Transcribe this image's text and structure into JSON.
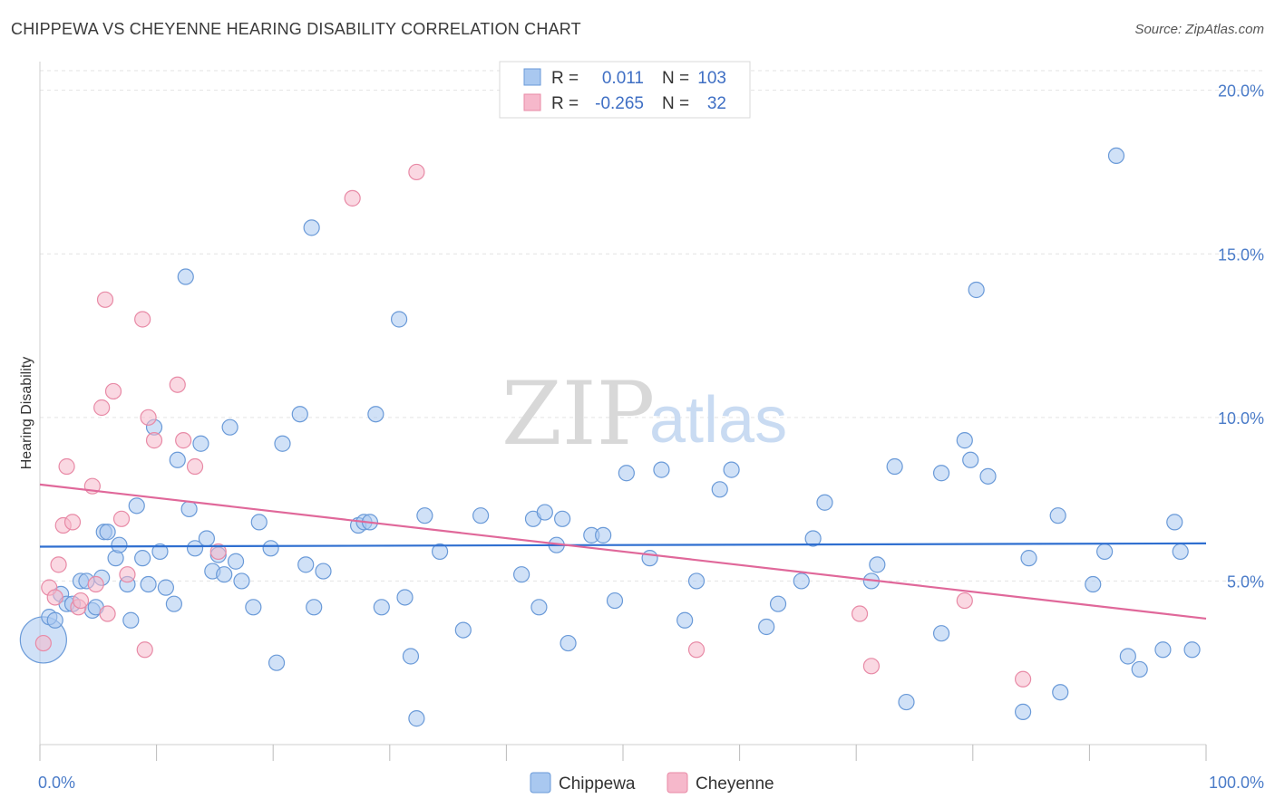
{
  "title": "CHIPPEWA VS CHEYENNE HEARING DISABILITY CORRELATION CHART",
  "source": "Source: ZipAtlas.com",
  "watermark": {
    "zip": "ZIP",
    "atlas": "atlas"
  },
  "colors": {
    "chippewa_fill": "#a9c8f0",
    "chippewa_stroke": "#6a9ad8",
    "chippewa_line": "#2f6fd0",
    "cheyenne_fill": "#f6b8cb",
    "cheyenne_stroke": "#e88aa6",
    "cheyenne_line": "#e0689a",
    "grid": "#e3e3e3",
    "tick_label": "#4a7bc8"
  },
  "legend": {
    "rows": [
      {
        "r_label": "R =",
        "r_value": "0.011",
        "n_label": "N =",
        "n_value": "103"
      },
      {
        "r_label": "R =",
        "r_value": "-0.265",
        "n_label": "N =",
        "n_value": "32"
      }
    ]
  },
  "chart_data": {
    "type": "scatter",
    "title": "CHIPPEWA VS CHEYENNE HEARING DISABILITY CORRELATION CHART",
    "xlabel": "",
    "ylabel": "Hearing Disability",
    "xlim": [
      0,
      100
    ],
    "ylim": [
      0,
      20.6
    ],
    "x_tick_labels": [
      "0.0%",
      "100.0%"
    ],
    "y_ticks": [
      5,
      10,
      15,
      20
    ],
    "y_tick_labels": [
      "5.0%",
      "10.0%",
      "15.0%",
      "20.0%"
    ],
    "grid": true,
    "legend_placement": "top-center",
    "series": [
      {
        "name": "Chippewa",
        "trend": {
          "y_at_0": 6.05,
          "y_at_100": 6.15
        },
        "points": [
          [
            0.3,
            3.2,
            30
          ],
          [
            0.8,
            3.9,
            10
          ],
          [
            1.3,
            3.8,
            10
          ],
          [
            1.8,
            4.6,
            10
          ],
          [
            2.3,
            4.3,
            10
          ],
          [
            2.8,
            4.3,
            10
          ],
          [
            3.5,
            5.0,
            10
          ],
          [
            4.0,
            5.0,
            10
          ],
          [
            4.5,
            4.1,
            10
          ],
          [
            4.8,
            4.2,
            10
          ],
          [
            5.3,
            5.1,
            10
          ],
          [
            5.5,
            6.5,
            10
          ],
          [
            5.8,
            6.5,
            10
          ],
          [
            6.5,
            5.7,
            10
          ],
          [
            6.8,
            6.1,
            10
          ],
          [
            7.5,
            4.9,
            10
          ],
          [
            7.8,
            3.8,
            10
          ],
          [
            8.3,
            7.3,
            10
          ],
          [
            8.8,
            5.7,
            10
          ],
          [
            9.3,
            4.9,
            10
          ],
          [
            9.8,
            9.7,
            10
          ],
          [
            10.3,
            5.9,
            10
          ],
          [
            10.8,
            4.8,
            10
          ],
          [
            11.5,
            4.3,
            10
          ],
          [
            11.8,
            8.7,
            10
          ],
          [
            12.5,
            14.3,
            10
          ],
          [
            12.8,
            7.2,
            10
          ],
          [
            13.3,
            6.0,
            10
          ],
          [
            13.8,
            9.2,
            10
          ],
          [
            14.3,
            6.3,
            10
          ],
          [
            14.8,
            5.3,
            10
          ],
          [
            15.3,
            5.8,
            10
          ],
          [
            15.8,
            5.2,
            10
          ],
          [
            16.3,
            9.7,
            10
          ],
          [
            16.8,
            5.6,
            10
          ],
          [
            17.3,
            5.0,
            10
          ],
          [
            18.3,
            4.2,
            10
          ],
          [
            18.8,
            6.8,
            10
          ],
          [
            19.8,
            6.0,
            10
          ],
          [
            20.3,
            2.5,
            10
          ],
          [
            20.8,
            9.2,
            10
          ],
          [
            22.3,
            10.1,
            10
          ],
          [
            22.8,
            5.5,
            10
          ],
          [
            23.3,
            15.8,
            10
          ],
          [
            23.5,
            4.2,
            10
          ],
          [
            24.3,
            5.3,
            10
          ],
          [
            27.3,
            6.7,
            10
          ],
          [
            27.8,
            6.8,
            10
          ],
          [
            28.3,
            6.8,
            10
          ],
          [
            28.8,
            10.1,
            10
          ],
          [
            29.3,
            4.2,
            10
          ],
          [
            30.8,
            13.0,
            10
          ],
          [
            31.3,
            4.5,
            10
          ],
          [
            31.8,
            2.7,
            10
          ],
          [
            32.3,
            0.8,
            10
          ],
          [
            33.0,
            7.0,
            10
          ],
          [
            34.3,
            5.9,
            10
          ],
          [
            36.3,
            3.5,
            10
          ],
          [
            37.8,
            7.0,
            10
          ],
          [
            41.3,
            5.2,
            10
          ],
          [
            42.3,
            6.9,
            10
          ],
          [
            42.8,
            4.2,
            10
          ],
          [
            43.3,
            7.1,
            10
          ],
          [
            44.3,
            6.1,
            10
          ],
          [
            44.8,
            6.9,
            10
          ],
          [
            45.3,
            3.1,
            10
          ],
          [
            47.3,
            6.4,
            10
          ],
          [
            48.3,
            6.4,
            10
          ],
          [
            49.3,
            4.4,
            10
          ],
          [
            50.3,
            8.3,
            10
          ],
          [
            52.3,
            5.7,
            10
          ],
          [
            53.3,
            8.4,
            10
          ],
          [
            55.3,
            3.8,
            10
          ],
          [
            56.3,
            5.0,
            10
          ],
          [
            58.3,
            7.8,
            10
          ],
          [
            59.3,
            8.4,
            10
          ],
          [
            62.3,
            3.6,
            10
          ],
          [
            63.3,
            4.3,
            10
          ],
          [
            65.3,
            5.0,
            10
          ],
          [
            66.3,
            6.3,
            10
          ],
          [
            67.3,
            7.4,
            10
          ],
          [
            71.3,
            5.0,
            10
          ],
          [
            71.8,
            5.5,
            10
          ],
          [
            73.3,
            8.5,
            10
          ],
          [
            74.3,
            1.3,
            10
          ],
          [
            77.3,
            3.4,
            10
          ],
          [
            77.3,
            8.3,
            10
          ],
          [
            79.3,
            9.3,
            10
          ],
          [
            79.8,
            8.7,
            10
          ],
          [
            80.3,
            13.9,
            10
          ],
          [
            81.3,
            8.2,
            10
          ],
          [
            84.3,
            1.0,
            10
          ],
          [
            84.8,
            5.7,
            10
          ],
          [
            87.3,
            7.0,
            10
          ],
          [
            87.5,
            1.6,
            10
          ],
          [
            90.3,
            4.9,
            10
          ],
          [
            91.3,
            5.9,
            10
          ],
          [
            92.3,
            18.0,
            10
          ],
          [
            93.3,
            2.7,
            10
          ],
          [
            94.3,
            2.3,
            10
          ],
          [
            96.3,
            2.9,
            10
          ],
          [
            97.3,
            6.8,
            10
          ],
          [
            97.8,
            5.9,
            10
          ],
          [
            98.8,
            2.9,
            10
          ]
        ]
      },
      {
        "name": "Cheyenne",
        "trend": {
          "y_at_0": 7.95,
          "y_at_100": 3.85
        },
        "points": [
          [
            0.3,
            3.1,
            10
          ],
          [
            0.8,
            4.8,
            10
          ],
          [
            1.3,
            4.5,
            10
          ],
          [
            1.6,
            5.5,
            10
          ],
          [
            2.0,
            6.7,
            10
          ],
          [
            2.3,
            8.5,
            10
          ],
          [
            2.8,
            6.8,
            10
          ],
          [
            3.3,
            4.2,
            10
          ],
          [
            3.5,
            4.4,
            10
          ],
          [
            4.5,
            7.9,
            10
          ],
          [
            4.8,
            4.9,
            10
          ],
          [
            5.8,
            4.0,
            10
          ],
          [
            5.3,
            10.3,
            10
          ],
          [
            5.6,
            13.6,
            10
          ],
          [
            6.3,
            10.8,
            10
          ],
          [
            7.0,
            6.9,
            10
          ],
          [
            7.5,
            5.2,
            10
          ],
          [
            8.8,
            13.0,
            10
          ],
          [
            9.0,
            2.9,
            10
          ],
          [
            9.3,
            10.0,
            10
          ],
          [
            9.8,
            9.3,
            10
          ],
          [
            11.8,
            11.0,
            10
          ],
          [
            12.3,
            9.3,
            10
          ],
          [
            13.3,
            8.5,
            10
          ],
          [
            15.3,
            5.9,
            10
          ],
          [
            26.8,
            16.7,
            10
          ],
          [
            32.3,
            17.5,
            10
          ],
          [
            56.3,
            2.9,
            10
          ],
          [
            70.3,
            4.0,
            10
          ],
          [
            71.3,
            2.4,
            10
          ],
          [
            79.3,
            4.4,
            10
          ],
          [
            84.3,
            2.0,
            10
          ]
        ]
      }
    ]
  },
  "bottom_legend": [
    {
      "label": "Chippewa"
    },
    {
      "label": "Cheyenne"
    }
  ]
}
